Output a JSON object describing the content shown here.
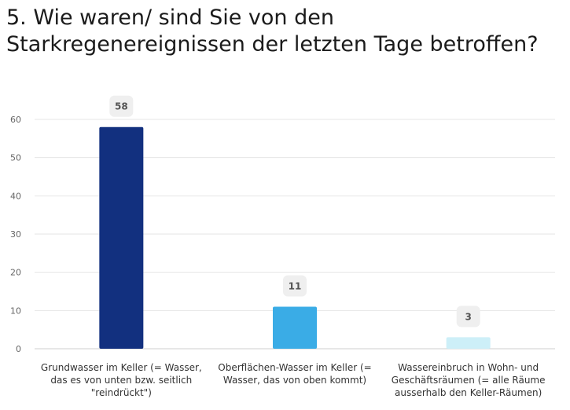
{
  "title": "5. Wie waren/ sind Sie von den Starkregenereignissen der letzten Tage betroffen?",
  "chart_data": {
    "type": "bar",
    "title": "5. Wie waren/ sind Sie von den Starkregenereignissen der letzten Tage betroffen?",
    "categories": [
      "Grundwasser im Keller (= Wasser, das es von unten bzw. seitlich \"reindrückt\")",
      "Oberflächen-Wasser im Keller (= Wasser, das von oben kommt)",
      "Wassereinbruch in Wohn- und Geschäftsräumen (= alle Räume ausserhalb den Keller-Räumen)"
    ],
    "values": [
      58,
      11,
      3
    ],
    "colors": [
      "#12307f",
      "#3aace6",
      "#cdeff8"
    ],
    "ylim": [
      0,
      60
    ],
    "yticks": [
      0,
      10,
      20,
      30,
      40,
      50,
      60
    ],
    "xlabel": "",
    "ylabel": "",
    "grid": true,
    "data_labels": true
  }
}
